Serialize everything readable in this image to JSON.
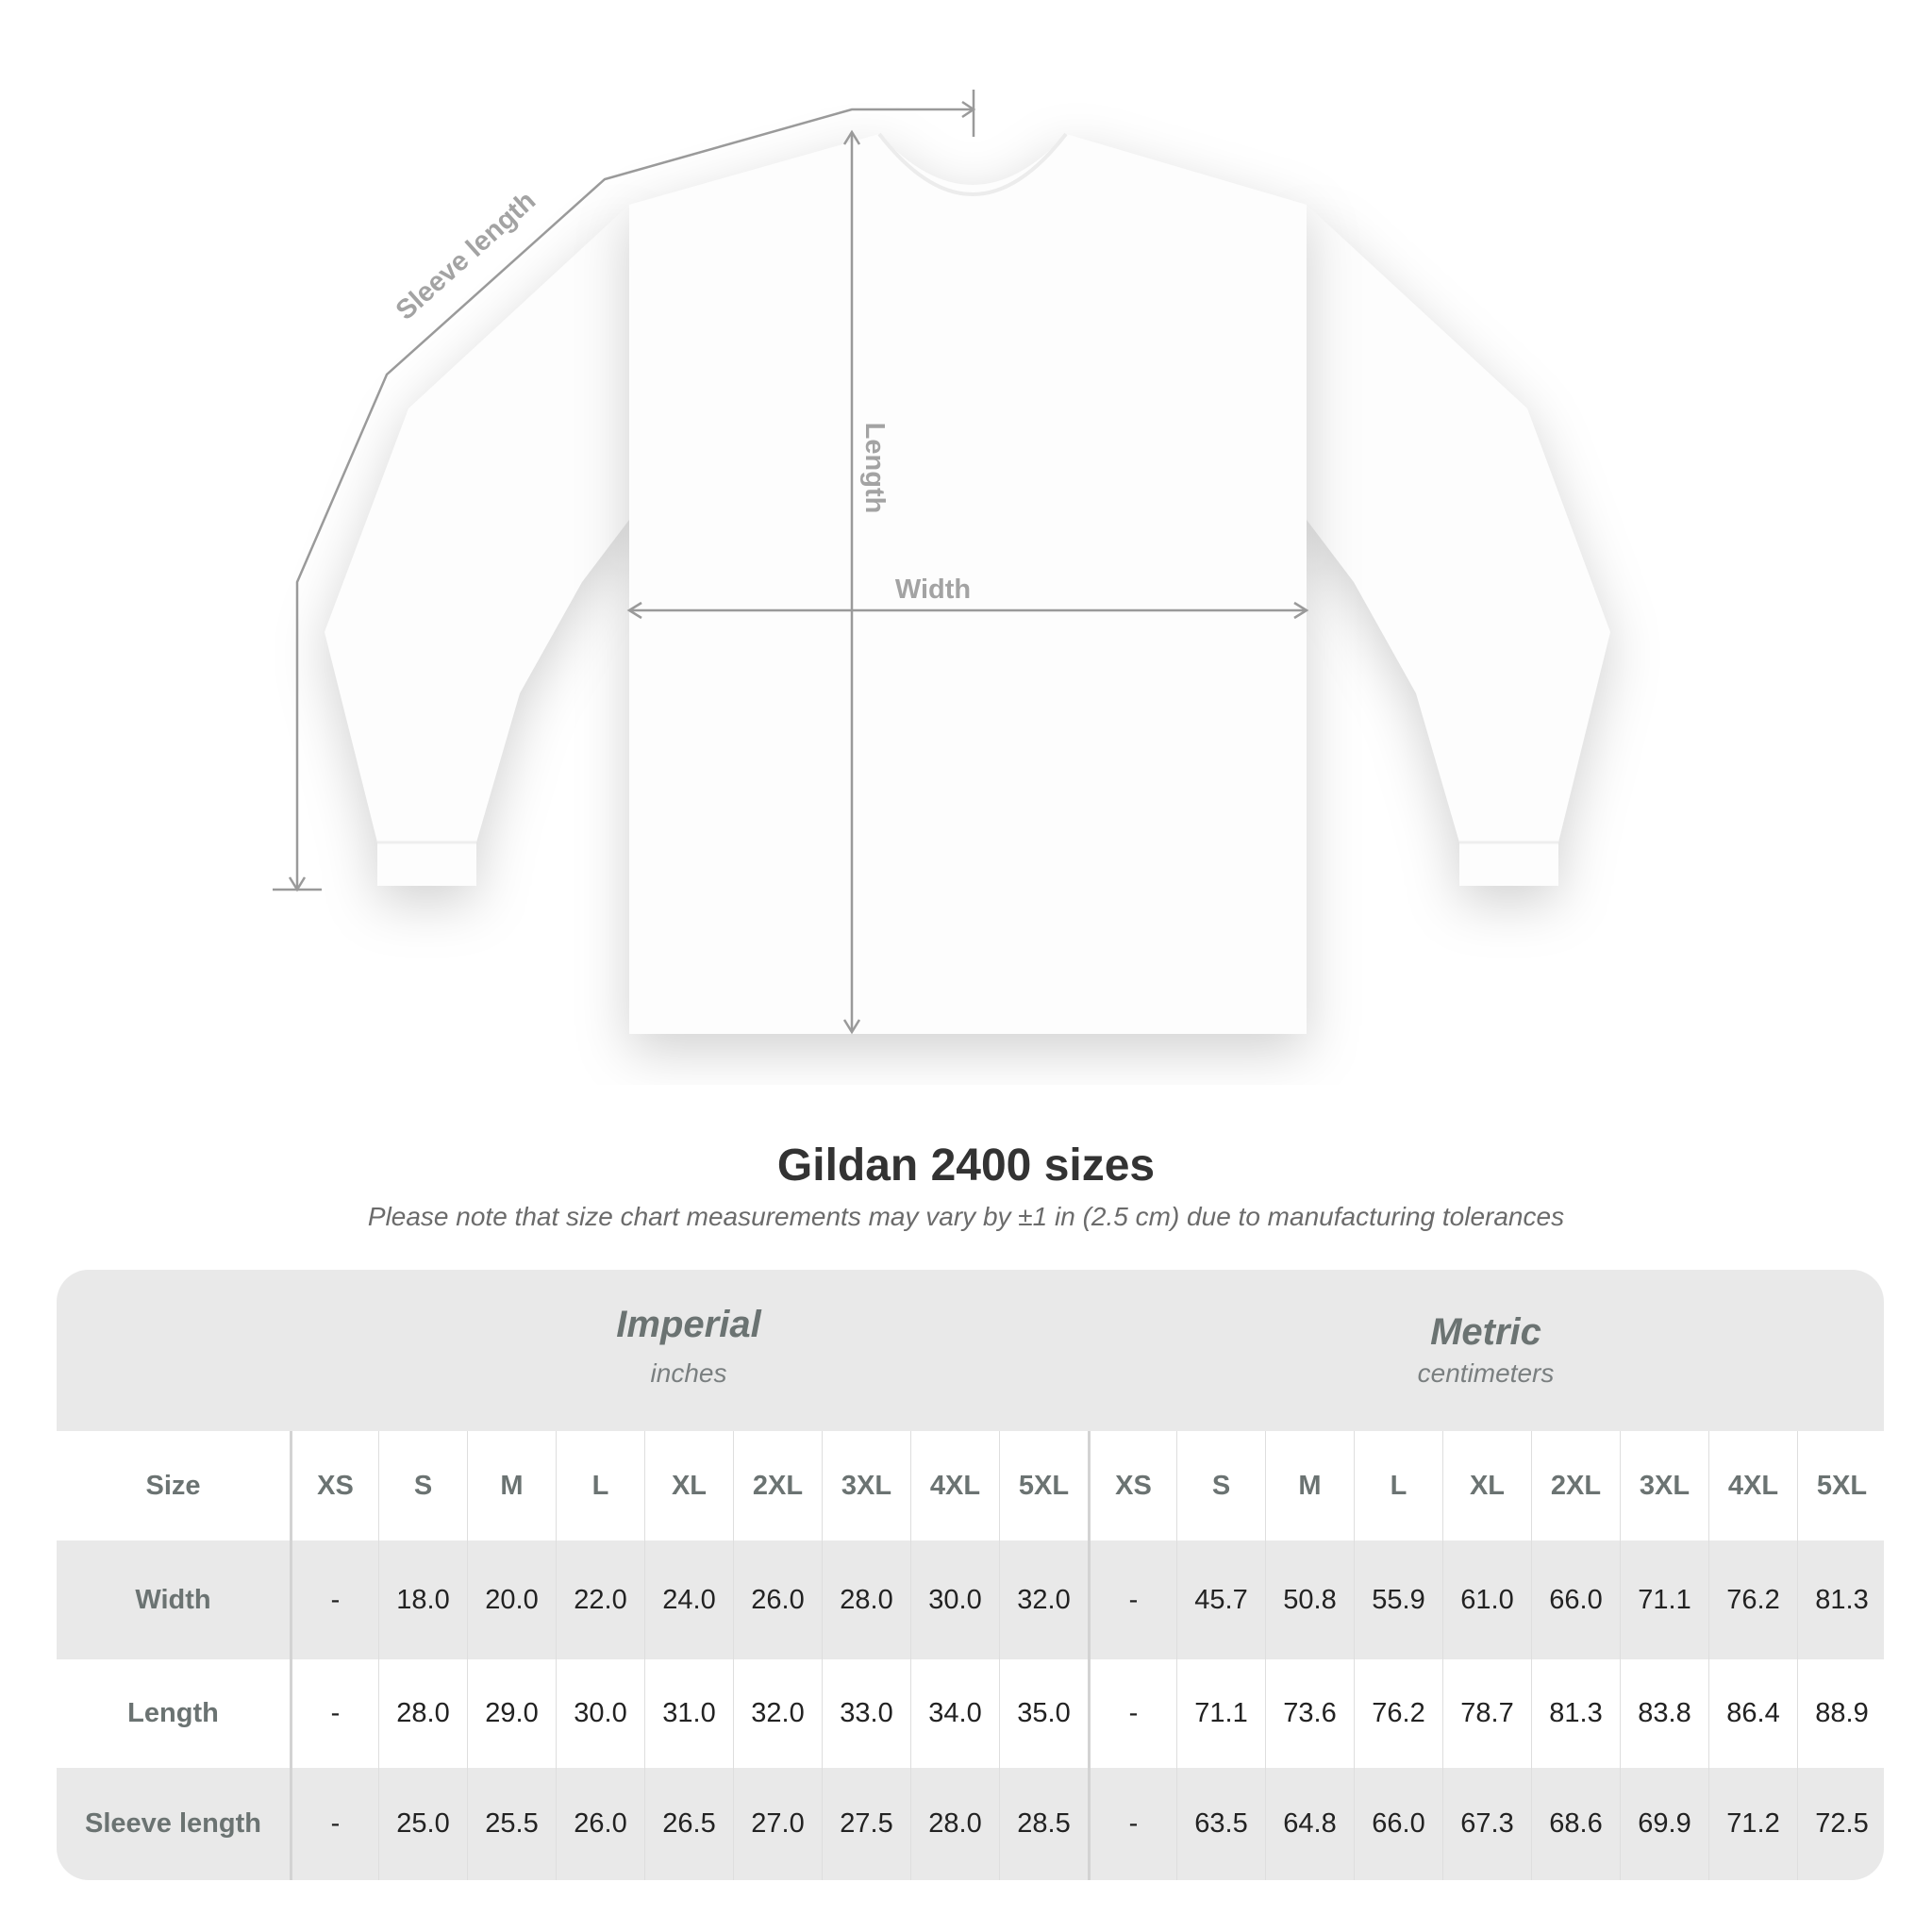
{
  "diagram": {
    "labels": {
      "sleeve": "Sleeve length",
      "length": "Length",
      "width": "Width"
    },
    "line_color": "#9a9a9a"
  },
  "title": "Gildan 2400 sizes",
  "subtitle": "Please note that size chart measurements may vary by ±1 in (2.5 cm) due to manufacturing tolerances",
  "table": {
    "imperial": {
      "name": "Imperial",
      "unit": "inches"
    },
    "metric": {
      "name": "Metric",
      "unit": "centimeters"
    },
    "size_label": "Size",
    "sizes": [
      "XS",
      "S",
      "M",
      "L",
      "XL",
      "2XL",
      "3XL",
      "4XL",
      "5XL"
    ],
    "rows": [
      {
        "label": "Width",
        "imperial": [
          "-",
          "18.0",
          "20.0",
          "22.0",
          "24.0",
          "26.0",
          "28.0",
          "30.0",
          "32.0"
        ],
        "metric": [
          "-",
          "45.7",
          "50.8",
          "55.9",
          "61.0",
          "66.0",
          "71.1",
          "76.2",
          "81.3"
        ]
      },
      {
        "label": "Length",
        "imperial": [
          "-",
          "28.0",
          "29.0",
          "30.0",
          "31.0",
          "32.0",
          "33.0",
          "34.0",
          "35.0"
        ],
        "metric": [
          "-",
          "71.1",
          "73.6",
          "76.2",
          "78.7",
          "81.3",
          "83.8",
          "86.4",
          "88.9"
        ]
      },
      {
        "label": "Sleeve length",
        "imperial": [
          "-",
          "25.0",
          "25.5",
          "26.0",
          "26.5",
          "27.0",
          "27.5",
          "28.0",
          "28.5"
        ],
        "metric": [
          "-",
          "63.5",
          "64.8",
          "66.0",
          "67.3",
          "68.6",
          "69.9",
          "71.2",
          "72.5"
        ]
      }
    ],
    "colors": {
      "band": "#e9e9e9",
      "label": "#6b7372",
      "value": "#222222"
    }
  }
}
